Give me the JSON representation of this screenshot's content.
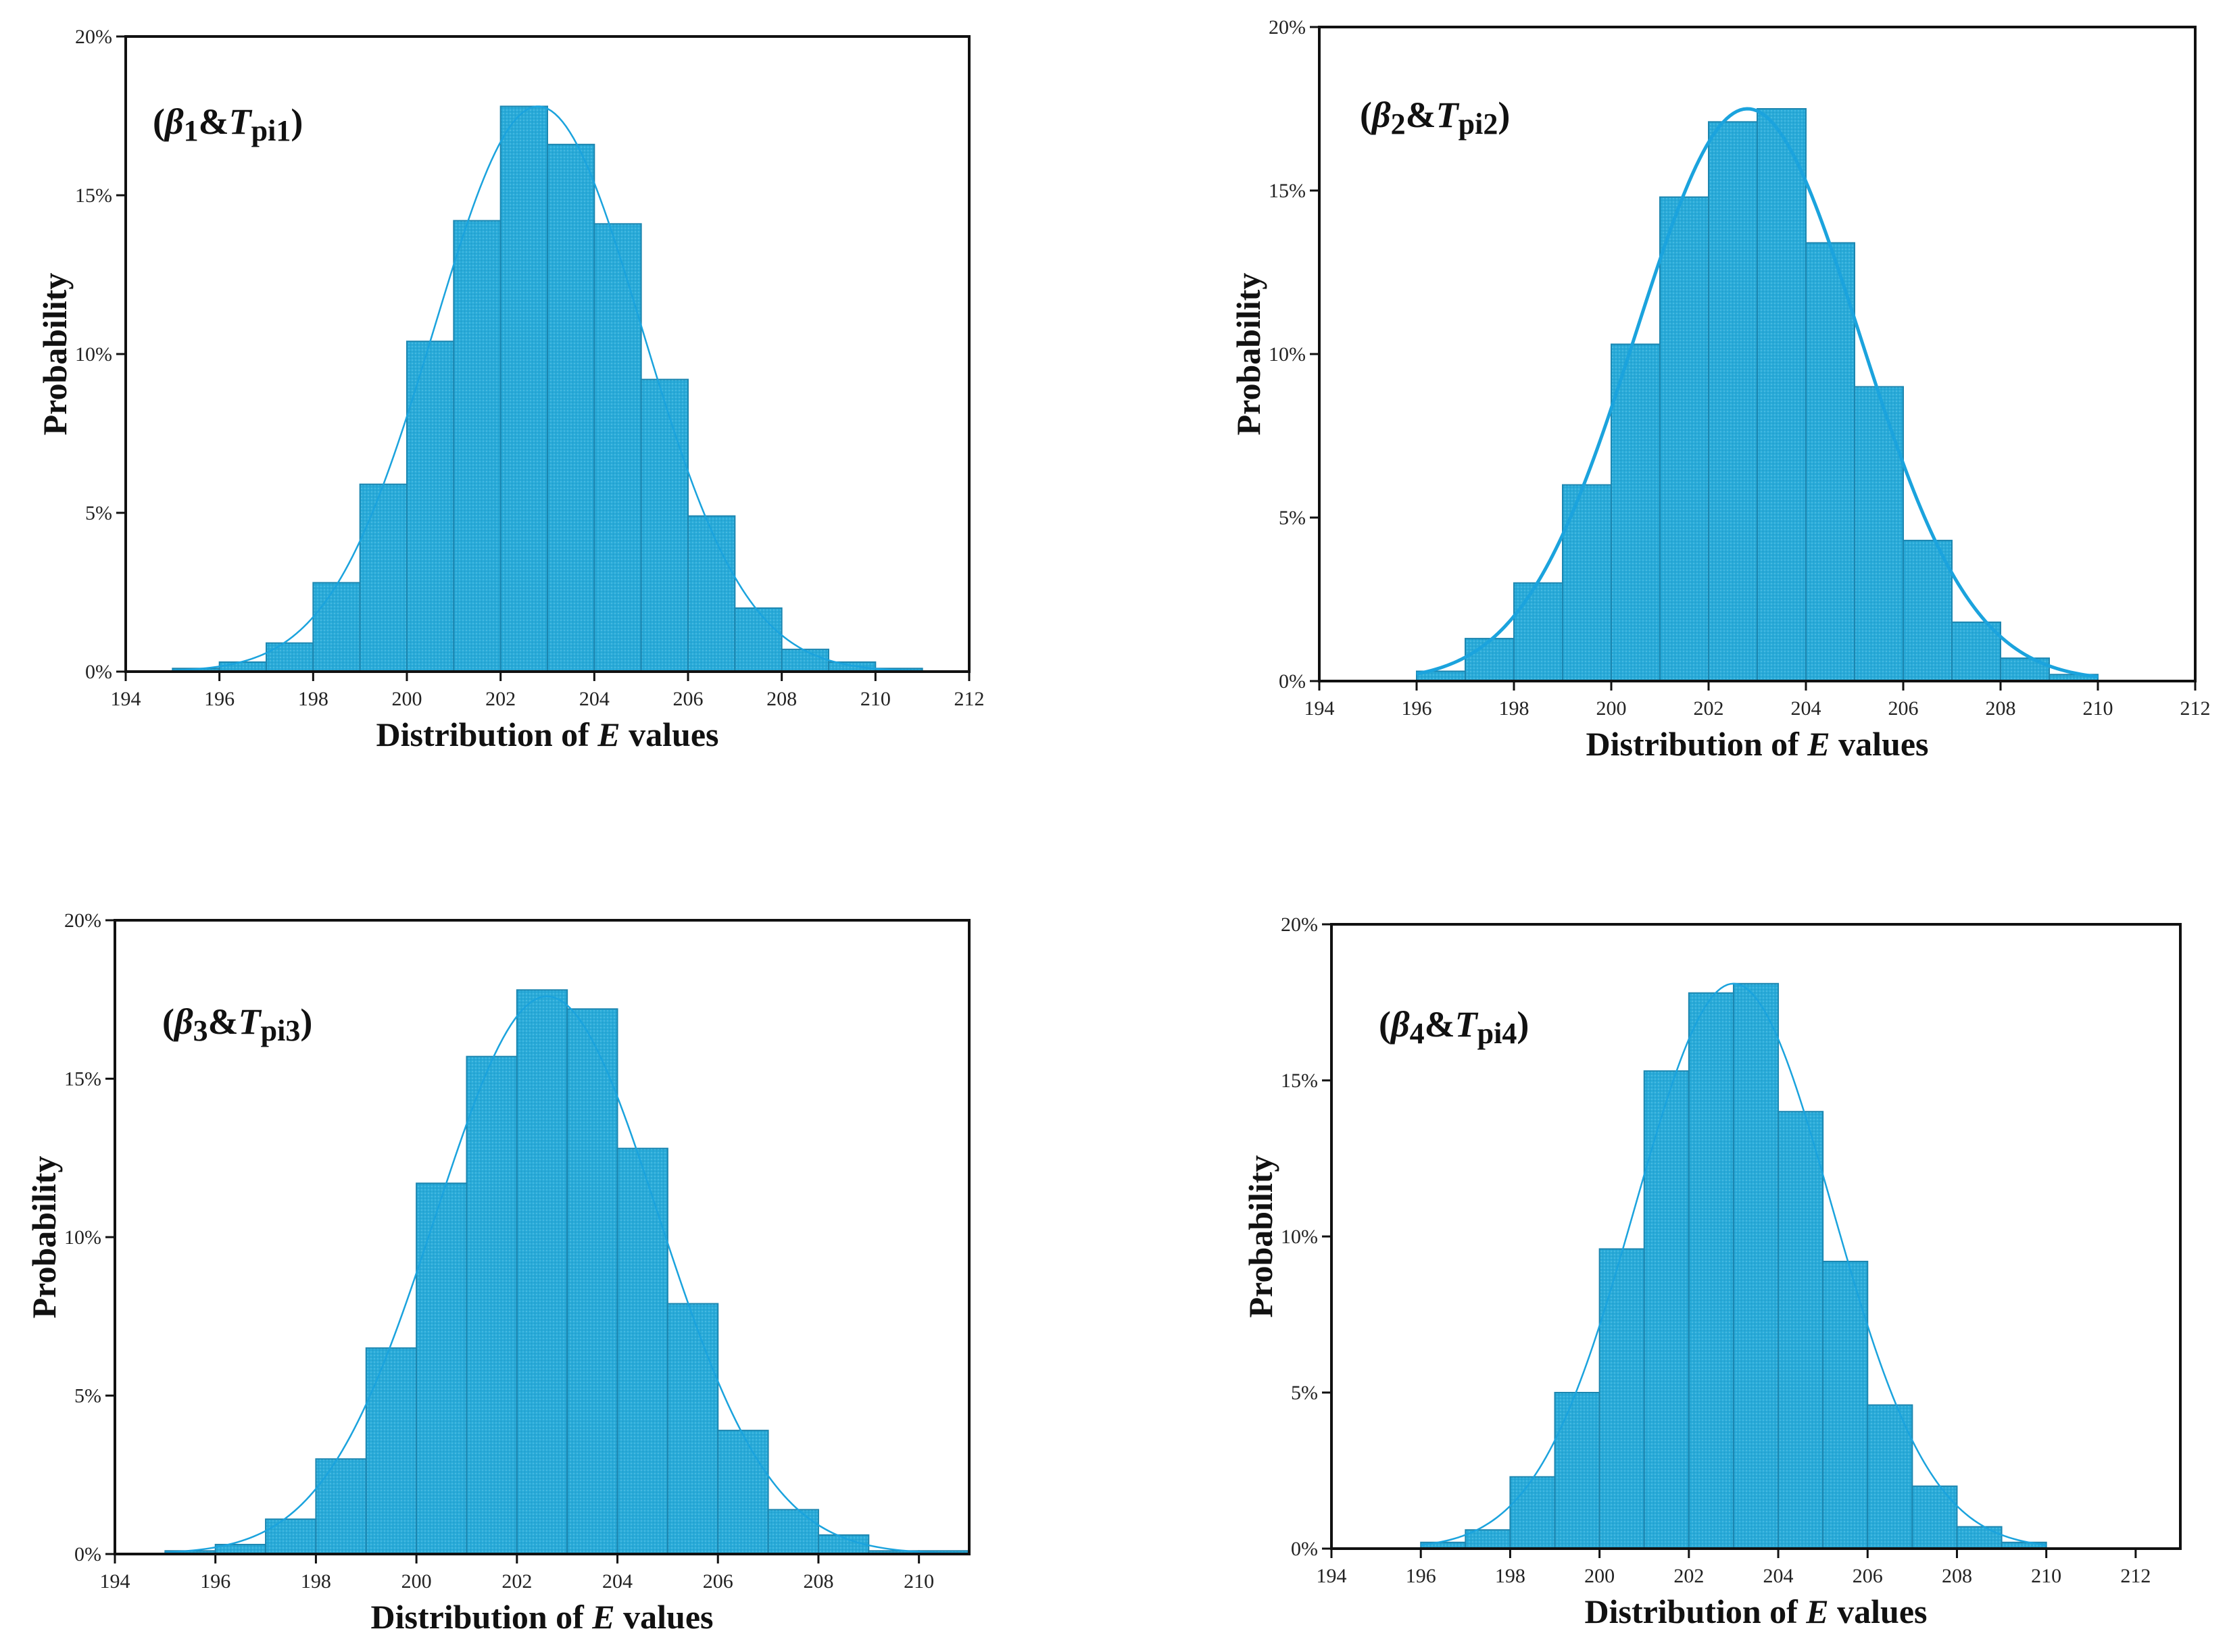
{
  "colors": {
    "bar_fill": "#29ABD9",
    "bar_stroke": "#1C86B0",
    "curve": "#1BA3DD",
    "axis": "#111111"
  },
  "chart_data": [
    {
      "type": "bar",
      "label": {
        "open": "(",
        "greek": "β",
        "n": "1",
        "amp": "&",
        "T": "T",
        "sub": "pi1",
        "close": ")"
      },
      "xlabel": {
        "pre": "Distribution of ",
        "var": "E",
        "post": " values"
      },
      "ylabel": "Probability",
      "xlim": [
        194,
        212
      ],
      "ylim": [
        0,
        20
      ],
      "xticks": [
        194,
        196,
        198,
        200,
        202,
        204,
        206,
        208,
        210,
        212
      ],
      "yticks": [
        0,
        5,
        10,
        15,
        20
      ],
      "ytick_labels": [
        "0%",
        "5%",
        "10%",
        "15%",
        "20%"
      ],
      "bin_width": 1,
      "bins": [
        195,
        196,
        197,
        198,
        199,
        200,
        201,
        202,
        203,
        204,
        205,
        206,
        207,
        208,
        209,
        210
      ],
      "values": [
        0.1,
        0.3,
        0.9,
        2.8,
        5.9,
        10.4,
        14.2,
        17.8,
        16.6,
        14.1,
        9.2,
        4.9,
        2.0,
        0.7,
        0.3,
        0.1
      ],
      "fit": {
        "type": "normal",
        "mean": 202.8,
        "sd": 2.22,
        "peak": 17.8
      }
    },
    {
      "type": "bar",
      "label": {
        "open": "(",
        "greek": "β",
        "n": "2",
        "amp": "&",
        "T": "T",
        "sub": "pi2",
        "close": ")"
      },
      "xlabel": {
        "pre": "Distribution of ",
        "var": "E",
        "post": " values"
      },
      "ylabel": "Probability",
      "xlim": [
        194,
        212
      ],
      "ylim": [
        0,
        20
      ],
      "xticks": [
        194,
        196,
        198,
        200,
        202,
        204,
        206,
        208,
        210,
        212
      ],
      "yticks": [
        0,
        5,
        10,
        15,
        20
      ],
      "ytick_labels": [
        "0%",
        "5%",
        "10%",
        "15%",
        "20%"
      ],
      "bin_width": 1,
      "bins": [
        196,
        197,
        198,
        199,
        200,
        201,
        202,
        203,
        204,
        205,
        206,
        207,
        208,
        209
      ],
      "values": [
        0.3,
        1.3,
        3.0,
        6.0,
        10.3,
        14.8,
        17.1,
        17.5,
        13.4,
        9.0,
        4.3,
        1.8,
        0.7,
        0.2
      ],
      "fit": {
        "type": "normal",
        "mean": 202.8,
        "sd": 2.3,
        "peak": 17.5
      }
    },
    {
      "type": "bar",
      "label": {
        "open": "(",
        "greek": "β",
        "n": "3",
        "amp": "&",
        "T": "T",
        "sub": "pi3",
        "close": ")"
      },
      "xlabel": {
        "pre": "Distribution of ",
        "var": "E",
        "post": " values"
      },
      "ylabel": "Probability",
      "xlim": [
        194,
        211
      ],
      "ylim": [
        0,
        20
      ],
      "xticks": [
        194,
        196,
        198,
        200,
        202,
        204,
        206,
        208,
        210
      ],
      "yticks": [
        0,
        5,
        10,
        15,
        20
      ],
      "ytick_labels": [
        "0%",
        "5%",
        "10%",
        "15%",
        "20%"
      ],
      "bin_width": 1,
      "bins": [
        195,
        196,
        197,
        198,
        199,
        200,
        201,
        202,
        203,
        204,
        205,
        206,
        207,
        208,
        209,
        210
      ],
      "values": [
        0.1,
        0.3,
        1.1,
        3.0,
        6.5,
        11.7,
        15.7,
        17.8,
        17.2,
        12.8,
        7.9,
        3.9,
        1.4,
        0.6,
        0.1,
        0.1
      ],
      "fit": {
        "type": "normal",
        "mean": 202.6,
        "sd": 2.22,
        "peak": 17.6
      }
    },
    {
      "type": "bar",
      "label": {
        "open": "(",
        "greek": "β",
        "n": "4",
        "amp": "&",
        "T": "T",
        "sub": "pi4",
        "close": ")"
      },
      "xlabel": {
        "pre": "Distribution of ",
        "var": "E",
        "post": " values"
      },
      "ylabel": "Probability",
      "xlim": [
        194,
        213
      ],
      "ylim": [
        0,
        20
      ],
      "xticks": [
        194,
        196,
        198,
        200,
        202,
        204,
        206,
        208,
        210,
        212
      ],
      "yticks": [
        0,
        5,
        10,
        15,
        20
      ],
      "ytick_labels": [
        "0%",
        "5%",
        "10%",
        "15%",
        "20%"
      ],
      "bin_width": 1,
      "bins": [
        196,
        197,
        198,
        199,
        200,
        201,
        202,
        203,
        204,
        205,
        206,
        207,
        208,
        209
      ],
      "values": [
        0.2,
        0.6,
        2.3,
        5.0,
        9.6,
        15.3,
        17.8,
        18.1,
        14.0,
        9.2,
        4.6,
        2.0,
        0.7,
        0.2
      ],
      "fit": {
        "type": "normal",
        "mean": 203.0,
        "sd": 2.2,
        "peak": 18.1
      }
    }
  ]
}
